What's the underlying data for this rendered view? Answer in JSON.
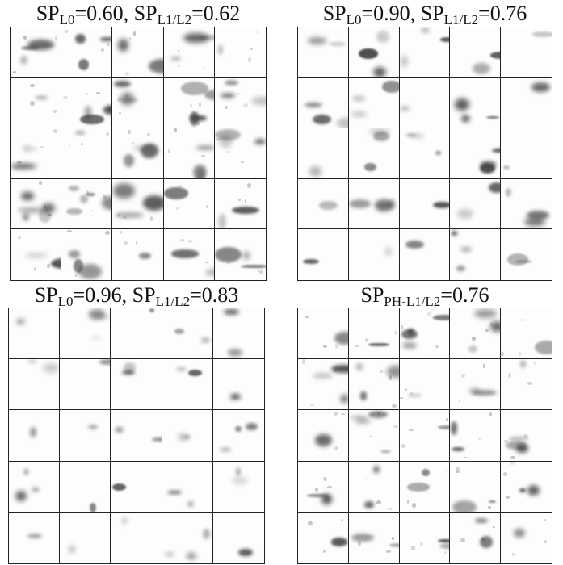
{
  "panels": [
    {
      "id": "top-left",
      "title": {
        "pre": "SP",
        "sub1": "L0",
        "mid": "=0.60, SP",
        "sub2": "L1/L2",
        "post": "=0.62"
      },
      "density": 0.9
    },
    {
      "id": "top-right",
      "title": {
        "pre": "SP",
        "sub1": "L0",
        "mid": "=0.90, SP",
        "sub2": "L1/L2",
        "post": "=0.76"
      },
      "density": 0.55
    },
    {
      "id": "bottom-left",
      "title": {
        "pre": "SP",
        "sub1": "L0",
        "mid": "=0.96, SP",
        "sub2": "L1/L2",
        "post": "=0.83"
      },
      "density": 0.35
    },
    {
      "id": "bottom-right",
      "title": {
        "pre": "SP",
        "sub1": "PH-L1/L2",
        "mid": "=0.76",
        "sub2": "",
        "post": ""
      },
      "density": 0.7
    }
  ]
}
